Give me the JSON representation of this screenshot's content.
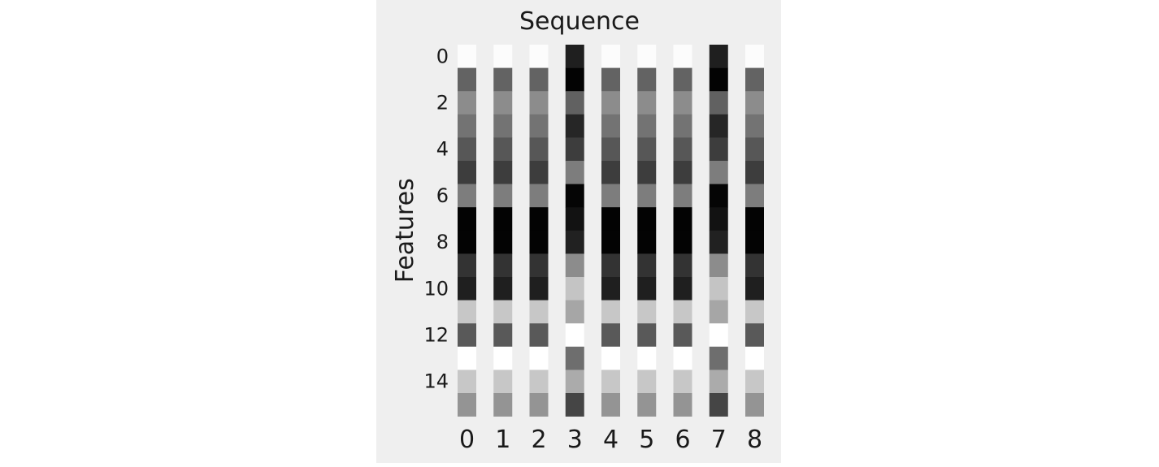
{
  "chart_data": {
    "type": "heatmap",
    "title": "Sequence",
    "xlabel": "",
    "ylabel": "Features",
    "colormap": "grayscale (black = low, white = high)",
    "grid": false,
    "x_ticks": [
      "0",
      "1",
      "2",
      "3",
      "4",
      "5",
      "6",
      "7",
      "8"
    ],
    "y_ticks": [
      "0",
      "2",
      "4",
      "6",
      "8",
      "10",
      "12",
      "14"
    ],
    "columns": [
      0,
      1,
      2,
      3,
      4,
      5,
      6,
      7,
      8
    ],
    "rows": [
      0,
      1,
      2,
      3,
      4,
      5,
      6,
      7,
      8,
      9,
      10,
      11,
      12,
      13,
      14,
      15
    ],
    "values": [
      [
        0.99,
        0.39,
        0.55,
        0.45,
        0.34,
        0.24,
        0.49,
        0.01,
        0.01,
        0.2,
        0.12,
        0.78,
        0.35,
        1.0,
        0.78,
        0.58
      ],
      [
        0.99,
        0.39,
        0.55,
        0.45,
        0.34,
        0.24,
        0.49,
        0.01,
        0.01,
        0.2,
        0.12,
        0.78,
        0.35,
        1.0,
        0.78,
        0.58
      ],
      [
        0.99,
        0.39,
        0.55,
        0.45,
        0.34,
        0.24,
        0.49,
        0.01,
        0.01,
        0.2,
        0.12,
        0.78,
        0.35,
        1.0,
        0.78,
        0.58
      ],
      [
        0.12,
        0.01,
        0.38,
        0.15,
        0.24,
        0.49,
        0.02,
        0.07,
        0.13,
        0.55,
        0.77,
        0.65,
        1.0,
        0.43,
        0.67,
        0.27
      ],
      [
        0.99,
        0.39,
        0.55,
        0.45,
        0.34,
        0.24,
        0.49,
        0.01,
        0.01,
        0.2,
        0.12,
        0.78,
        0.35,
        1.0,
        0.78,
        0.58
      ],
      [
        0.99,
        0.39,
        0.55,
        0.45,
        0.34,
        0.24,
        0.49,
        0.01,
        0.01,
        0.2,
        0.12,
        0.78,
        0.35,
        1.0,
        0.78,
        0.58
      ],
      [
        0.99,
        0.39,
        0.55,
        0.45,
        0.34,
        0.24,
        0.49,
        0.01,
        0.01,
        0.2,
        0.12,
        0.78,
        0.35,
        1.0,
        0.78,
        0.58
      ],
      [
        0.12,
        0.01,
        0.38,
        0.15,
        0.24,
        0.49,
        0.02,
        0.07,
        0.13,
        0.55,
        0.77,
        0.65,
        1.0,
        0.43,
        0.67,
        0.27
      ],
      [
        0.99,
        0.39,
        0.55,
        0.45,
        0.34,
        0.24,
        0.49,
        0.01,
        0.01,
        0.2,
        0.12,
        0.78,
        0.35,
        1.0,
        0.78,
        0.58
      ]
    ]
  }
}
